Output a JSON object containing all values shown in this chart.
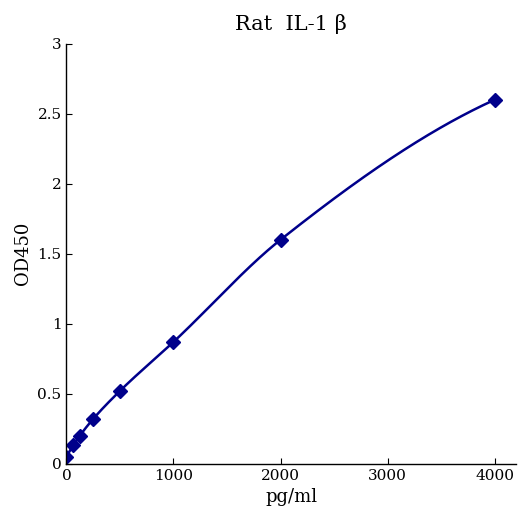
{
  "title": "Rat  IL-1 β",
  "xlabel": "pg/ml",
  "ylabel": "OD450",
  "x_data": [
    0,
    62.5,
    125,
    250,
    500,
    1000,
    2000,
    4000
  ],
  "y_data": [
    0.05,
    0.13,
    0.2,
    0.32,
    0.52,
    0.87,
    1.6,
    2.6
  ],
  "line_color": "#00008B",
  "marker_color": "#00008B",
  "text_color": "#000000",
  "xlim": [
    0,
    4200
  ],
  "ylim": [
    0,
    3
  ],
  "xticks": [
    0,
    1000,
    2000,
    3000,
    4000
  ],
  "yticks": [
    0,
    0.5,
    1.0,
    1.5,
    2.0,
    2.5,
    3.0
  ],
  "ytick_labels": [
    "0",
    "0.5",
    "1",
    "1.5",
    "2",
    "2.5",
    "3"
  ],
  "title_fontsize": 15,
  "axis_label_fontsize": 13,
  "tick_fontsize": 11,
  "marker_size": 7,
  "line_width": 1.8,
  "figure_width": 5.3,
  "figure_height": 5.2,
  "dpi": 100
}
